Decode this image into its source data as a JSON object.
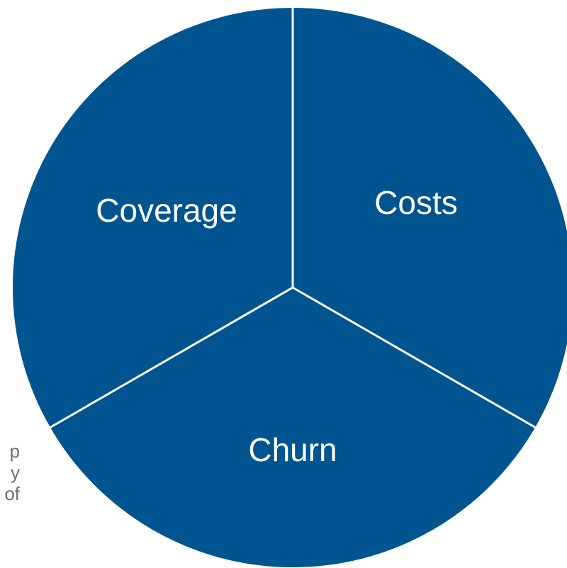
{
  "background_text": [
    "p",
    "y",
    "of"
  ],
  "colors": {
    "segment_fill": "#00548f",
    "divider": "#ffffff",
    "label": "#ffffff",
    "background_text": "#6f6f6f"
  },
  "segments": [
    {
      "id": "costs",
      "label": "Costs"
    },
    {
      "id": "churn",
      "label": "Churn"
    },
    {
      "id": "coverage",
      "label": "Coverage"
    }
  ]
}
